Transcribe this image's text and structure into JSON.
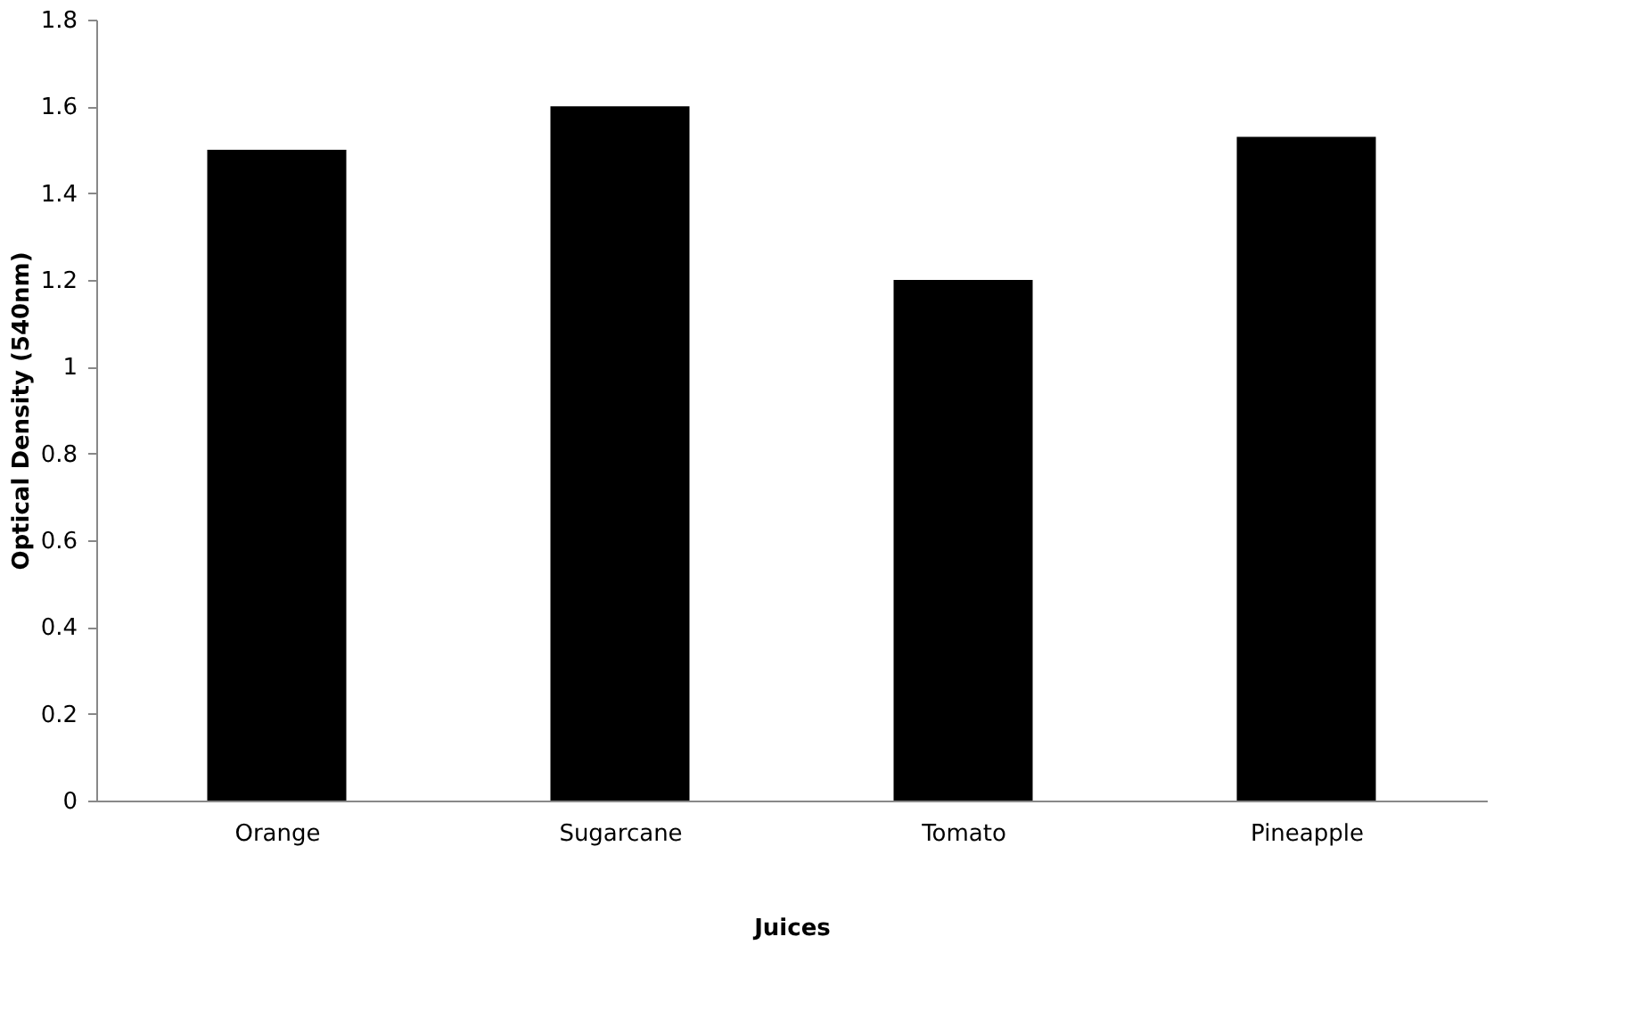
{
  "chart_data": {
    "type": "bar",
    "xlabel": "Juices",
    "ylabel": "Optical Density (540nm)",
    "categories": [
      "Orange",
      "Sugarcane",
      "Tomato",
      "Pineapple"
    ],
    "values": [
      1.5,
      1.6,
      1.2,
      1.53
    ],
    "color": "#000000",
    "ylim": [
      0,
      1.8
    ],
    "yticks": [
      0,
      0.2,
      0.4,
      0.6,
      0.8,
      1,
      1.2,
      1.4,
      1.6,
      1.8
    ],
    "grid": false
  }
}
